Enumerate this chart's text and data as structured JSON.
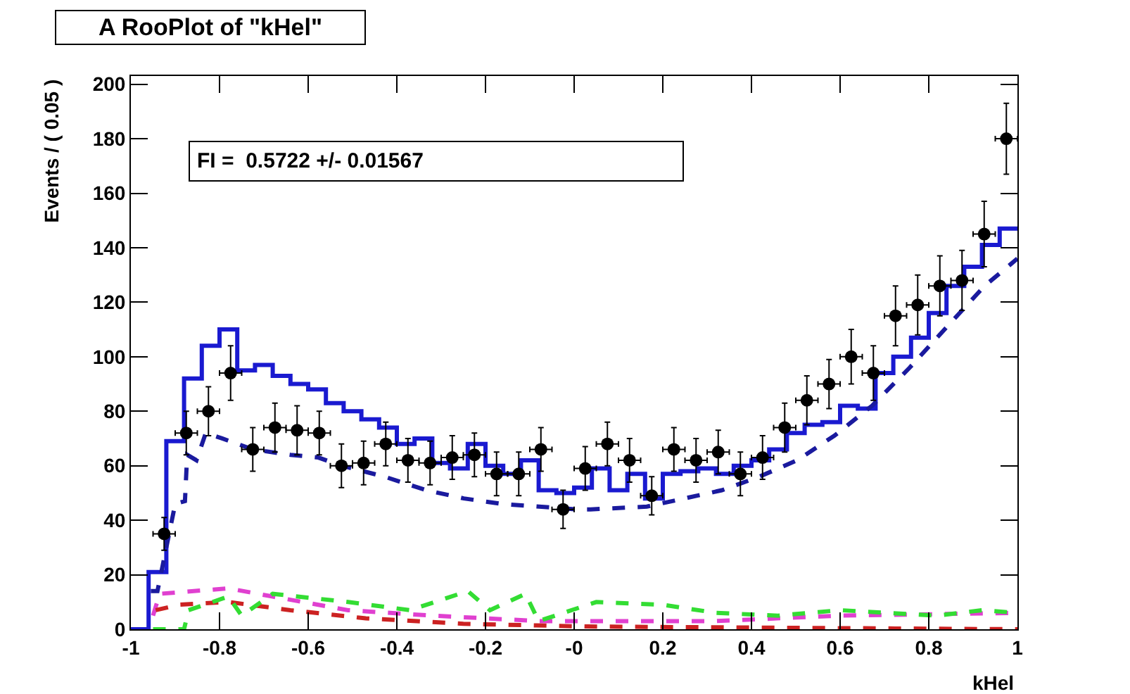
{
  "chart_data": {
    "type": "scatter",
    "title": "A RooPlot of \"kHel\"",
    "xlabel": "kHel",
    "ylabel": "Events / ( 0.05 )",
    "annotations": [
      "FI =  0.5722 +/- 0.01567"
    ],
    "xlim": [
      -1,
      1
    ],
    "ylim": [
      0,
      203
    ],
    "xticks": [
      -1,
      -0.8,
      -0.6,
      -0.4,
      -0.2,
      {
        "value": 0,
        "label": "-0"
      },
      0.2,
      0.4,
      0.6,
      0.8,
      1
    ],
    "yticks": [
      0,
      20,
      40,
      60,
      80,
      100,
      120,
      140,
      160,
      180,
      200
    ],
    "series": [
      {
        "type": "step",
        "color": "#1a1ad0",
        "line_style": "solid",
        "x": [
          -1,
          -0.96,
          -0.92,
          -0.88,
          -0.84,
          -0.8,
          -0.76,
          -0.72,
          -0.68,
          -0.64,
          -0.6,
          -0.56,
          -0.52,
          -0.48,
          -0.44,
          -0.4,
          -0.36,
          -0.32,
          -0.28,
          -0.24,
          -0.2,
          -0.16,
          -0.12,
          -0.08,
          -0.04,
          0,
          0.04,
          0.08,
          0.12,
          0.16,
          0.2,
          0.24,
          0.28,
          0.32,
          0.36,
          0.4,
          0.44,
          0.48,
          0.52,
          0.56,
          0.6,
          0.64,
          0.68,
          0.72,
          0.76,
          0.8,
          0.84,
          0.88,
          0.92,
          0.96,
          1
        ],
        "values": [
          0,
          21,
          69,
          92,
          104,
          110,
          95,
          97,
          93,
          90,
          88,
          83,
          80,
          77,
          74,
          68,
          70,
          61,
          59,
          68,
          60,
          57,
          62,
          51,
          50,
          52,
          59,
          51,
          57,
          48,
          57,
          58,
          59,
          57,
          60,
          62,
          66,
          72,
          75,
          76,
          82,
          81,
          94,
          100,
          107,
          116,
          126,
          133,
          141,
          147,
          147
        ]
      },
      {
        "type": "line",
        "color": "#1a1a9e",
        "line_style": "dashed",
        "x": [
          -0.955,
          -0.94,
          -0.9,
          -0.878,
          -0.873,
          -0.852,
          -0.831,
          -0.794,
          -0.725,
          -0.64,
          -0.577,
          -0.524,
          -0.428,
          -0.333,
          -0.249,
          -0.164,
          -0.079,
          0.005,
          0.037,
          0.164,
          0.249,
          0.333,
          0.418,
          0.503,
          0.587,
          0.672,
          0.757,
          0.841,
          0.926,
          1.0
        ],
        "values": [
          14,
          14,
          46,
          47,
          64,
          62,
          72,
          70,
          66,
          64,
          63,
          60,
          56,
          51,
          48,
          46,
          45,
          44,
          44,
          45,
          48,
          51,
          56,
          62,
          71,
          82,
          96,
          111,
          126,
          136
        ]
      },
      {
        "type": "line",
        "color": "#e040d0",
        "line_style": "dashed",
        "x": [
          -0.95,
          -0.935,
          -0.78,
          -0.68,
          -0.51,
          -0.32,
          -0.08,
          0.32,
          0.6,
          1.0
        ],
        "values": [
          5,
          13,
          15,
          12,
          7,
          5,
          3,
          3,
          5,
          6
        ]
      },
      {
        "type": "line",
        "color": "#cc2222",
        "line_style": "dashed",
        "x": [
          -0.944,
          -0.89,
          -0.78,
          -0.64,
          -0.47,
          -0.25,
          0.03,
          1.0
        ],
        "values": [
          7,
          9,
          10,
          7,
          4,
          2,
          1,
          0
        ]
      },
      {
        "type": "line",
        "color": "#33dd33",
        "line_style": "dashed",
        "x": [
          -0.95,
          -0.88,
          -0.87,
          -0.78,
          -0.75,
          -0.68,
          -0.51,
          -0.37,
          -0.24,
          -0.19,
          -0.11,
          -0.08,
          0.05,
          0.2,
          0.32,
          0.46,
          0.6,
          0.82,
          0.92,
          1.0
        ],
        "values": [
          0,
          0,
          7,
          12,
          5,
          13,
          10,
          7,
          14,
          7,
          13,
          3,
          10,
          9,
          6,
          5,
          7,
          5,
          7,
          6
        ]
      },
      {
        "color": "#000000",
        "marker": "circle",
        "x": [
          -0.925,
          -0.875,
          -0.825,
          -0.775,
          -0.725,
          -0.675,
          -0.625,
          -0.575,
          -0.525,
          -0.475,
          -0.425,
          -0.375,
          -0.325,
          -0.275,
          -0.225,
          -0.175,
          -0.125,
          -0.075,
          -0.025,
          0.025,
          0.075,
          0.125,
          0.175,
          0.225,
          0.275,
          0.325,
          0.375,
          0.425,
          0.475,
          0.525,
          0.575,
          0.625,
          0.675,
          0.725,
          0.775,
          0.825,
          0.875,
          0.925,
          0.975
        ],
        "values": [
          35,
          72,
          80,
          94,
          66,
          74,
          73,
          72,
          60,
          61,
          68,
          62,
          61,
          63,
          64,
          57,
          57,
          66,
          44,
          59,
          68,
          62,
          49,
          66,
          62,
          65,
          57,
          63,
          74,
          84,
          90,
          100,
          94,
          115,
          119,
          126,
          128,
          145,
          180
        ],
        "errors": [
          6,
          8,
          9,
          10,
          8,
          9,
          9,
          8,
          8,
          8,
          8,
          8,
          8,
          8,
          8,
          8,
          8,
          8,
          7,
          8,
          8,
          8,
          7,
          8,
          8,
          8,
          8,
          8,
          9,
          9,
          9,
          10,
          10,
          11,
          11,
          11,
          11,
          12,
          13
        ],
        "xerrors": [
          0.025,
          0.025,
          0.025,
          0.025,
          0.025,
          0.025,
          0.025,
          0.025,
          0.025,
          0.025,
          0.025,
          0.025,
          0.025,
          0.025,
          0.025,
          0.025,
          0.025,
          0.025,
          0.025,
          0.025,
          0.025,
          0.025,
          0.025,
          0.025,
          0.025,
          0.025,
          0.025,
          0.025,
          0.025,
          0.025,
          0.025,
          0.025,
          0.025,
          0.025,
          0.025,
          0.025,
          0.025,
          0.025,
          0.025
        ]
      }
    ]
  }
}
